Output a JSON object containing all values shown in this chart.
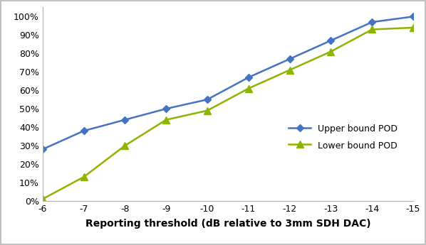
{
  "x": [
    -6,
    -7,
    -8,
    -9,
    -10,
    -11,
    -12,
    -13,
    -14,
    -15
  ],
  "upper_bound_pod": [
    0.28,
    0.38,
    0.44,
    0.5,
    0.55,
    0.67,
    0.77,
    0.87,
    0.97,
    1.0
  ],
  "lower_bound_pod": [
    0.01,
    0.13,
    0.3,
    0.44,
    0.49,
    0.61,
    0.71,
    0.81,
    0.93,
    0.94
  ],
  "upper_color": "#4472C4",
  "lower_color": "#8CB400",
  "upper_label": "Upper bound POD",
  "lower_label": "Lower bound POD",
  "xlabel": "Reporting threshold (dB relative to 3mm SDH DAC)",
  "ylim": [
    0,
    1.05
  ],
  "xlim_left": -6,
  "xlim_right": -15,
  "background_color": "#ffffff",
  "frame_color": "#c0c0c0",
  "legend_fontsize": 9,
  "axis_fontsize": 9,
  "tick_fontsize": 9,
  "xlabel_fontsize": 10
}
